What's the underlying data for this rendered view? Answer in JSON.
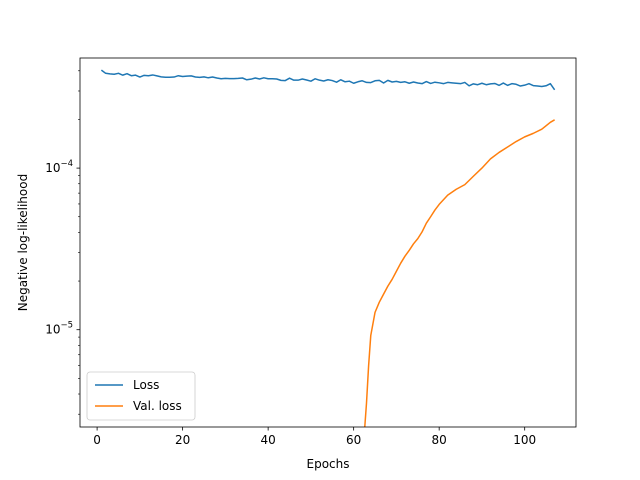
{
  "chart_data": {
    "type": "line",
    "title": "",
    "xlabel": "Epochs",
    "ylabel": "Negative log-likelihood",
    "yscale": "log",
    "xlim": [
      -4,
      112
    ],
    "ylim": [
      2.5e-06,
      0.00048
    ],
    "xticks": [
      0,
      20,
      40,
      60,
      80,
      100
    ],
    "yticks": [
      {
        "value": 1e-05,
        "base": "10",
        "exp": "−5"
      },
      {
        "value": 0.0001,
        "base": "10",
        "exp": "−4"
      }
    ],
    "grid": false,
    "legend": "lower-left",
    "series": [
      {
        "name": "Loss",
        "color": "#1f77b4",
        "x": [
          1,
          2,
          3,
          4,
          5,
          6,
          7,
          8,
          9,
          10,
          11,
          12,
          13,
          14,
          15,
          16,
          17,
          18,
          19,
          20,
          21,
          22,
          23,
          24,
          25,
          26,
          27,
          28,
          29,
          30,
          31,
          32,
          33,
          34,
          35,
          36,
          37,
          38,
          39,
          40,
          41,
          42,
          43,
          44,
          45,
          46,
          47,
          48,
          49,
          50,
          51,
          52,
          53,
          54,
          55,
          56,
          57,
          58,
          59,
          60,
          61,
          62,
          63,
          64,
          65,
          66,
          67,
          68,
          69,
          70,
          71,
          72,
          73,
          74,
          75,
          76,
          77,
          78,
          79,
          80,
          81,
          82,
          83,
          84,
          85,
          86,
          87,
          88,
          89,
          90,
          91,
          92,
          93,
          94,
          95,
          96,
          97,
          98,
          99,
          100,
          101,
          102,
          103,
          104,
          105,
          106,
          107
        ],
        "values": [
          0.000404,
          0.000386,
          0.000383,
          0.000381,
          0.000386,
          0.000376,
          0.000384,
          0.000373,
          0.000376,
          0.000366,
          0.000375,
          0.000373,
          0.000377,
          0.000372,
          0.000367,
          0.000365,
          0.000365,
          0.000366,
          0.000373,
          0.000369,
          0.000371,
          0.000372,
          0.000366,
          0.000364,
          0.000367,
          0.000362,
          0.000366,
          0.000361,
          0.000357,
          0.000359,
          0.000358,
          0.000358,
          0.000359,
          0.000361,
          0.000352,
          0.000355,
          0.000361,
          0.000356,
          0.000362,
          0.000357,
          0.000357,
          0.000356,
          0.000349,
          0.000348,
          0.00036,
          0.00035,
          0.00035,
          0.000356,
          0.000351,
          0.000345,
          0.000357,
          0.00035,
          0.000346,
          0.000352,
          0.000348,
          0.00034,
          0.000352,
          0.000342,
          0.000345,
          0.000335,
          0.000342,
          0.000347,
          0.000339,
          0.000338,
          0.000347,
          0.000349,
          0.000336,
          0.000349,
          0.000341,
          0.000344,
          0.000339,
          0.000342,
          0.000335,
          0.000341,
          0.000336,
          0.000333,
          0.000343,
          0.000334,
          0.00034,
          0.000337,
          0.000333,
          0.000339,
          0.000337,
          0.000335,
          0.000333,
          0.000339,
          0.000323,
          0.000332,
          0.000328,
          0.000335,
          0.000328,
          0.000332,
          0.000334,
          0.000325,
          0.000336,
          0.000325,
          0.000333,
          0.00033,
          0.000322,
          0.000326,
          0.000333,
          0.000324,
          0.000322,
          0.00032,
          0.000323,
          0.000333,
          0.000305
        ]
      },
      {
        "name": "Val. loss",
        "color": "#ff7f0e",
        "x": [
          62.6,
          63,
          63.5,
          64,
          65,
          66,
          67,
          68,
          69,
          70,
          71,
          72,
          73,
          74,
          75,
          76,
          77,
          78,
          79,
          80,
          82,
          84,
          86,
          88,
          90,
          92,
          94,
          96,
          98,
          100,
          102,
          104,
          106,
          107
        ],
        "values": [
          2.5e-06,
          3.5e-06,
          6e-06,
          9.2e-06,
          1.28e-05,
          1.48e-05,
          1.66e-05,
          1.86e-05,
          2.05e-05,
          2.3e-05,
          2.58e-05,
          2.85e-05,
          3.1e-05,
          3.4e-05,
          3.66e-05,
          4.03e-05,
          4.56e-05,
          5e-05,
          5.5e-05,
          5.96e-05,
          6.8e-05,
          7.4e-05,
          7.9e-05,
          8.9e-05,
          0.0001,
          0.000114,
          0.000125,
          0.000135,
          0.000146,
          0.000156,
          0.000164,
          0.000174,
          0.000192,
          0.000199
        ]
      }
    ]
  }
}
